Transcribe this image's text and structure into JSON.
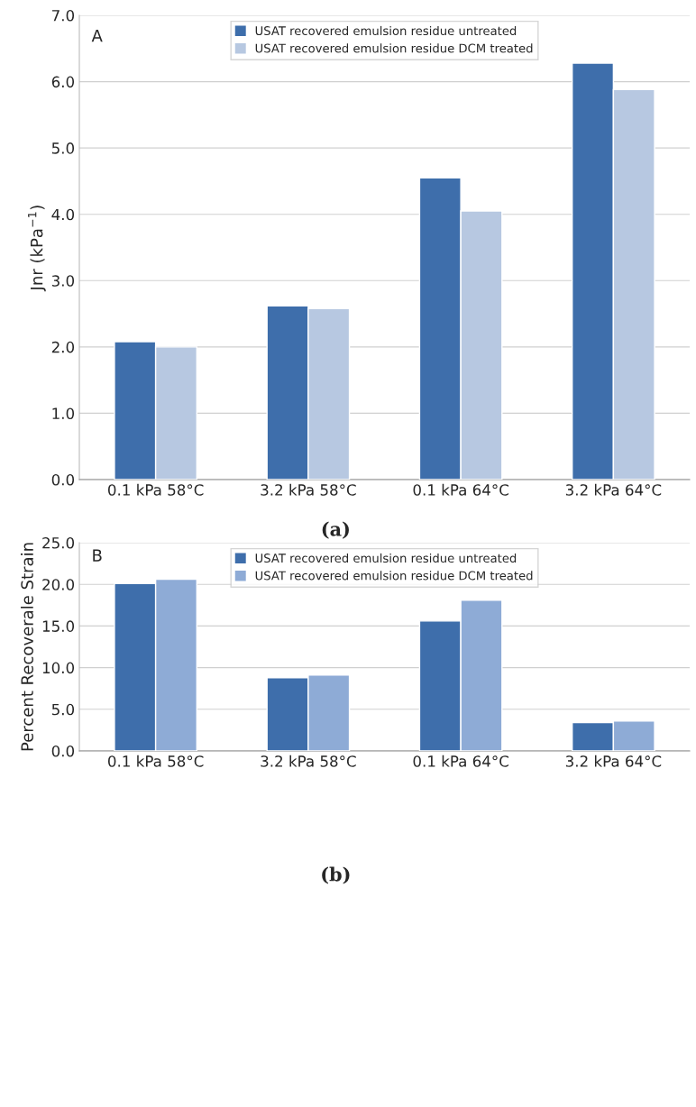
{
  "chart_data": [
    {
      "type": "bar",
      "ylabel": "Jnr (kPa$^{−1}$)",
      "categories": [
        "0.1 kPa 58°C",
        "3.2 kPa 58°C",
        "0.1 kPa 64°C",
        "3.2 kPa 64°C"
      ],
      "series": [
        {
          "name": "USAT recovered emulsion residue untreated",
          "color": "#3e6eab",
          "values": [
            2.08,
            2.62,
            4.55,
            6.28
          ]
        },
        {
          "name": "USAT recovered emulsion residue DCM treated",
          "color": "#b7c8e1",
          "values": [
            2.0,
            2.58,
            4.05,
            5.88
          ]
        }
      ],
      "ylim": [
        0,
        7
      ],
      "yticks": [
        {
          "value": 0,
          "label": "0.0"
        },
        {
          "value": 1,
          "label": "1.0"
        },
        {
          "value": 2,
          "label": "2.0"
        },
        {
          "value": 3,
          "label": "3.0"
        },
        {
          "value": 4,
          "label": "4.0"
        },
        {
          "value": 5,
          "label": "5.0"
        },
        {
          "value": 6,
          "label": "6.0"
        },
        {
          "value": 7,
          "label": "7.0"
        }
      ],
      "grid": "y",
      "legend": "top",
      "annotations": [
        "A",
        "(a)"
      ]
    },
    {
      "type": "bar",
      "ylabel": "Percent Recoverale Strain",
      "categories": [
        "0.1 kPa 58°C",
        "3.2 kPa 58°C",
        "0.1 kPa 64°C",
        "3.2 kPa 64°C"
      ],
      "series": [
        {
          "name": "USAT recovered emulsion residue untreated",
          "color": "#3e6eab",
          "values": [
            20.1,
            8.8,
            15.6,
            3.4
          ]
        },
        {
          "name": "USAT recovered emulsion residue DCM treated",
          "color": "#8eabd6",
          "values": [
            20.6,
            9.1,
            18.1,
            3.6
          ]
        }
      ],
      "ylim": [
        0,
        25
      ],
      "yticks": [
        {
          "value": 0,
          "label": "0.0"
        },
        {
          "value": 5,
          "label": "5.0"
        },
        {
          "value": 10,
          "label": "10.0"
        },
        {
          "value": 15,
          "label": "15.0"
        },
        {
          "value": 20,
          "label": "20.0"
        },
        {
          "value": 25,
          "label": "25.0"
        }
      ],
      "grid": "y",
      "legend": "top",
      "annotations": [
        "B",
        "(b)"
      ]
    }
  ]
}
